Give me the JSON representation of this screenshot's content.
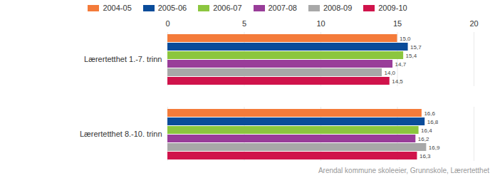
{
  "chart_data": {
    "type": "bar",
    "orientation": "horizontal",
    "categories": [
      "Lærertetthet 1.-7. trinn",
      "Lærertetthet 8.-10. trinn"
    ],
    "series": [
      {
        "name": "2004-05",
        "color": "#f47b3a",
        "values": [
          15.0,
          16.6
        ],
        "value_labels": [
          "15,0",
          "16,6"
        ]
      },
      {
        "name": "2005-06",
        "color": "#0a4c9a",
        "values": [
          15.7,
          16.8
        ],
        "value_labels": [
          "15,7",
          "16,8"
        ]
      },
      {
        "name": "2006-07",
        "color": "#8cc63f",
        "values": [
          15.4,
          16.4
        ],
        "value_labels": [
          "15,4",
          "16,4"
        ]
      },
      {
        "name": "2007-08",
        "color": "#993d99",
        "values": [
          14.7,
          16.2
        ],
        "value_labels": [
          "14,7",
          "16,2"
        ]
      },
      {
        "name": "2008-09",
        "color": "#a8a8a8",
        "values": [
          14.0,
          16.9
        ],
        "value_labels": [
          "14,0",
          "16,9"
        ]
      },
      {
        "name": "2009-10",
        "color": "#d0134b",
        "values": [
          14.5,
          16.3
        ],
        "value_labels": [
          "14,5",
          "16,3"
        ]
      }
    ],
    "xlim": [
      0,
      20
    ],
    "xticks": [
      0,
      5,
      10,
      15,
      20
    ],
    "grid": true,
    "legend": "top",
    "data_labels": true,
    "caption": "Arendal kommune skoleeier, Grunnskole, Lærertetthet"
  }
}
